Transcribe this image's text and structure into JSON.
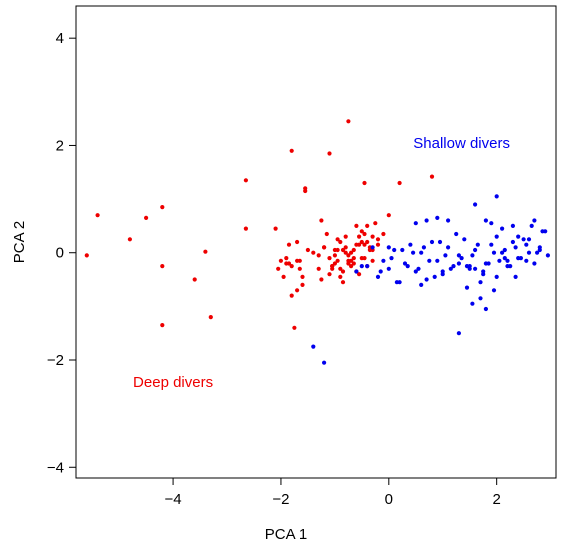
{
  "chart_data": {
    "type": "scatter",
    "xlabel": "PCA 1",
    "ylabel": "PCA 2",
    "xlim": [
      -5.8,
      3.1
    ],
    "ylim": [
      -4.2,
      4.6
    ],
    "x_ticks": [
      -4,
      -2,
      0,
      2
    ],
    "x_tick_labels": [
      "−4",
      "−2",
      "0",
      "2"
    ],
    "y_ticks": [
      -4,
      -2,
      0,
      2,
      4
    ],
    "y_tick_labels": [
      "−4",
      "−2",
      "0",
      "2",
      "4"
    ],
    "grid": false,
    "legend": "none",
    "annotations": [
      {
        "text": "Shallow divers",
        "x": 1.35,
        "y": 1.95,
        "color": "#0000ee",
        "anchor": "middle"
      },
      {
        "text": "Deep divers",
        "x": -4.0,
        "y": -2.5,
        "color": "#ee0000",
        "anchor": "middle"
      }
    ],
    "series": [
      {
        "color": "#ee0000",
        "x": [
          -5.6,
          -5.4,
          -4.8,
          -4.5,
          -4.2,
          -4.2,
          -4.2,
          -3.6,
          -3.4,
          -3.3,
          -2.65,
          -2.65,
          -2.1,
          -1.8,
          -1.75,
          -1.55,
          -1.55,
          -1.5,
          -1.1,
          -0.75,
          -0.45,
          0.2,
          0.8,
          -2.0,
          -1.9,
          -1.9,
          -1.85,
          -1.8,
          -1.7,
          -1.65,
          -1.6,
          -1.95,
          -1.7,
          -1.85,
          -2.05,
          -1.7,
          -1.65,
          -1.6,
          -1.8,
          -1.4,
          -1.3,
          -1.25,
          -1.2,
          -1.1,
          -1.05,
          -1.0,
          -0.95,
          -0.9,
          -0.85,
          -0.8,
          -0.75,
          -0.7,
          -0.65,
          -0.6,
          -0.55,
          -0.5,
          -0.45,
          -0.4,
          -0.35,
          -0.3,
          -0.25,
          -0.2,
          -0.1,
          0.0,
          -1.3,
          -1.2,
          -1.1,
          -1.0,
          -0.9,
          -0.8,
          -0.7,
          -0.6,
          -0.5,
          -0.4,
          -0.3,
          -0.2,
          -1.25,
          -1.15,
          -1.05,
          -0.95,
          -0.85,
          -0.75,
          -0.65,
          -0.55,
          -0.45,
          -0.35,
          -1.0,
          -0.9,
          -0.8,
          -0.7,
          -0.6,
          -0.5,
          -0.85,
          -0.75,
          -0.65,
          -0.55,
          -0.45,
          -1.05,
          -0.95,
          -0.4,
          -0.3
        ],
        "y": [
          -0.05,
          0.7,
          0.25,
          0.65,
          0.85,
          -0.25,
          -1.35,
          -0.5,
          0.02,
          -1.2,
          1.35,
          0.45,
          0.45,
          1.9,
          -1.4,
          1.2,
          1.15,
          0.05,
          1.85,
          2.45,
          1.3,
          1.3,
          1.42,
          -0.15,
          -0.2,
          -0.1,
          0.15,
          -0.25,
          -0.15,
          -0.3,
          -0.6,
          -0.45,
          -0.7,
          -0.2,
          -0.3,
          0.2,
          -0.15,
          -0.45,
          -0.8,
          0.0,
          -0.3,
          -0.5,
          0.1,
          -0.1,
          -0.25,
          0.05,
          -0.15,
          0.2,
          -0.35,
          0.1,
          -0.05,
          0.0,
          -0.2,
          0.15,
          0.3,
          0.4,
          -0.1,
          0.5,
          0.05,
          0.3,
          0.55,
          0.15,
          0.35,
          0.7,
          -0.05,
          0.1,
          -0.4,
          -0.2,
          -0.3,
          0.0,
          -0.15,
          -0.35,
          0.2,
          -0.25,
          0.05,
          0.25,
          0.6,
          0.35,
          -0.3,
          0.25,
          -0.55,
          -0.15,
          0.05,
          -0.4,
          0.15,
          0.1,
          -0.05,
          -0.45,
          0.3,
          -0.25,
          0.5,
          -0.1,
          0.05,
          -0.2,
          -0.1,
          0.15,
          0.35,
          -0.25,
          0.05,
          0.2,
          -0.15
        ]
      },
      {
        "color": "#0000ee",
        "x": [
          -1.4,
          -1.2,
          1.3,
          1.55,
          1.8,
          -0.4,
          -0.2,
          -0.1,
          0.0,
          0.1,
          0.2,
          0.3,
          0.4,
          0.5,
          0.6,
          0.7,
          0.8,
          0.9,
          1.0,
          1.1,
          1.2,
          1.3,
          1.4,
          1.5,
          1.6,
          1.7,
          1.8,
          1.9,
          2.0,
          2.1,
          2.2,
          2.3,
          2.4,
          2.5,
          2.6,
          2.7,
          2.8,
          2.9,
          -0.3,
          -0.15,
          0.05,
          0.15,
          0.25,
          0.35,
          0.45,
          0.55,
          0.65,
          0.75,
          0.85,
          0.95,
          1.05,
          1.15,
          1.25,
          1.35,
          1.45,
          1.55,
          1.65,
          1.75,
          1.85,
          1.95,
          2.05,
          2.15,
          2.25,
          2.35,
          2.45,
          2.55,
          2.65,
          2.75,
          2.85,
          1.6,
          1.7,
          1.9,
          2.0,
          2.2,
          2.4,
          2.6,
          2.7,
          1.45,
          1.75,
          1.95,
          2.15,
          2.35,
          2.55,
          2.8,
          2.95,
          0.5,
          0.7,
          0.9,
          1.1,
          1.3,
          1.5,
          1.8,
          2.0,
          2.1,
          -0.6,
          -0.5,
          0.0,
          0.6,
          1.0,
          1.6,
          2.3
        ],
        "y": [
          -1.75,
          -2.05,
          -1.5,
          -0.95,
          -1.05,
          -0.25,
          -0.45,
          -0.15,
          -0.3,
          0.05,
          -0.55,
          -0.2,
          0.15,
          -0.35,
          0.0,
          -0.5,
          0.2,
          -0.15,
          -0.4,
          0.1,
          -0.25,
          -0.05,
          0.25,
          -0.3,
          0.05,
          -0.55,
          -0.2,
          0.15,
          -0.45,
          0.0,
          -0.15,
          0.2,
          -0.1,
          0.25,
          0.0,
          -0.2,
          0.1,
          0.4,
          0.1,
          -0.35,
          -0.1,
          -0.55,
          0.05,
          -0.25,
          0.0,
          -0.3,
          0.1,
          -0.15,
          -0.45,
          0.2,
          -0.05,
          -0.3,
          0.35,
          -0.1,
          -0.25,
          -0.05,
          0.15,
          -0.4,
          -0.2,
          0.0,
          -0.15,
          0.05,
          -0.25,
          0.1,
          -0.1,
          0.15,
          0.5,
          0.0,
          0.4,
          0.9,
          -0.85,
          0.55,
          1.05,
          -0.25,
          0.3,
          0.25,
          0.6,
          -0.65,
          -0.35,
          -0.7,
          -0.1,
          -0.45,
          -0.15,
          0.05,
          -0.05,
          0.55,
          0.6,
          0.65,
          0.6,
          -0.2,
          -0.25,
          0.6,
          0.3,
          0.45,
          -0.35,
          -0.25,
          0.1,
          -0.6,
          -0.35,
          -0.3,
          0.5
        ]
      }
    ]
  }
}
